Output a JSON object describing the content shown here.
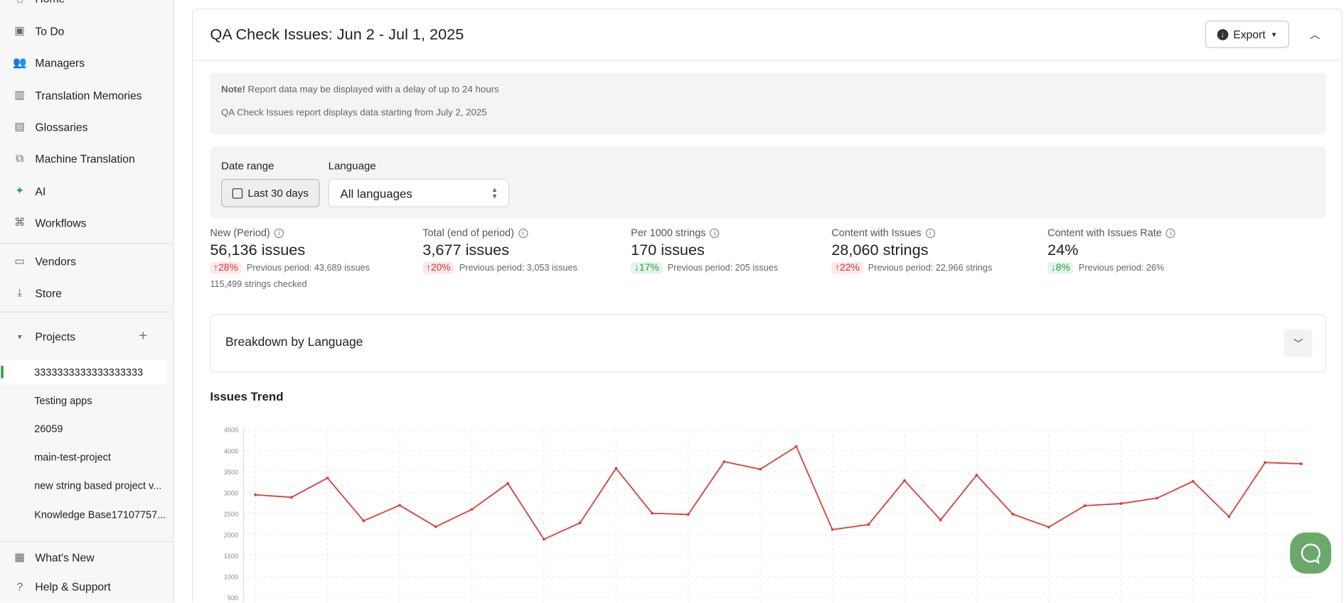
{
  "sidebar": {
    "nav": [
      {
        "label": "Home",
        "icon": "home-icon"
      },
      {
        "label": "To Do",
        "icon": "calendar-check-icon"
      },
      {
        "label": "Managers",
        "icon": "people-icon"
      },
      {
        "label": "Translation Memories",
        "icon": "book-open-icon"
      },
      {
        "label": "Glossaries",
        "icon": "library-icon"
      },
      {
        "label": "Machine Translation",
        "icon": "translate-icon"
      },
      {
        "label": "AI",
        "icon": "ai-sparkle-icon"
      },
      {
        "label": "Workflows",
        "icon": "workflow-icon"
      },
      {
        "label": "Vendors",
        "icon": "store-icon"
      },
      {
        "label": "Store",
        "icon": "download-icon"
      }
    ],
    "projects_label": "Projects",
    "projects": [
      "3333333333333333333",
      "Testing apps",
      "26059",
      "main-test-project",
      "new string based project v...",
      "Knowledge Base17107757..."
    ],
    "bottom": [
      {
        "label": "What's New",
        "icon": "news-icon"
      },
      {
        "label": "Help & Support",
        "icon": "help-icon"
      }
    ]
  },
  "report": {
    "title": "QA Check Issues: Jun 2 - Jul 1, 2025",
    "export_label": "Export",
    "note_bold": "Note!",
    "note_text": " Report data may be displayed with a delay of up to 24 hours",
    "note_text2": "QA Check Issues report displays data starting from July 2, 2025",
    "date_range_label": "Date range",
    "date_range_value": "Last 30 days",
    "language_label": "Language",
    "language_value": "All languages",
    "stats": [
      {
        "label": "New (Period)",
        "value": "56,136 issues",
        "change": "28%",
        "dir": "up",
        "prev": "Previous period: 43,689 issues",
        "sub": "115,499 strings checked"
      },
      {
        "label": "Total (end of period)",
        "value": "3,677 issues",
        "change": "20%",
        "dir": "up",
        "prev": "Previous period: 3,053 issues"
      },
      {
        "label": "Per 1000 strings",
        "value": "170 issues",
        "change": "17%",
        "dir": "down",
        "prev": "Previous period: 205 issues"
      },
      {
        "label": "Content with Issues",
        "value": "28,060 strings",
        "change": "22%",
        "dir": "up",
        "prev": "Previous period: 22,966 strings"
      },
      {
        "label": "Content with Issues Rate",
        "value": "24%",
        "change": "8%",
        "dir": "down",
        "prev": "Previous period: 26%"
      }
    ],
    "breakdown_label": "Breakdown by Language",
    "trend_label": "Issues Trend"
  },
  "chart_data": {
    "type": "line",
    "title": "Issues Trend",
    "yticks": [
      500,
      1000,
      1500,
      2000,
      2500,
      3000,
      3500,
      4000,
      4500
    ],
    "ylim": [
      0,
      4500
    ],
    "grid": true,
    "line_color": "#d9403a",
    "values": [
      2950,
      2890,
      3350,
      2330,
      2700,
      2190,
      2600,
      3220,
      1890,
      2280,
      3580,
      2510,
      2480,
      3740,
      3560,
      4100,
      2120,
      2240,
      3290,
      2350,
      3420,
      2490,
      2180,
      2690,
      2740,
      2870,
      3270,
      2430,
      3720,
      3690
    ]
  },
  "colors": {
    "accent": "#3a9a4a",
    "chat": "#6aa96a",
    "up": "#d33333",
    "down": "#2a9a4a"
  }
}
